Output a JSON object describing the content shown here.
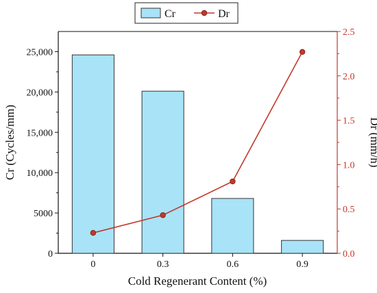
{
  "chart_data": {
    "type": "bar",
    "categories": [
      "0",
      "0.3",
      "0.6",
      "0.9"
    ],
    "series": [
      {
        "name": "Cr",
        "kind": "bar",
        "axis": "left",
        "values": [
          24600,
          20100,
          6800,
          1600
        ],
        "color": "#a8e3f7"
      },
      {
        "name": "Dr",
        "kind": "line",
        "axis": "right",
        "values": [
          0.23,
          0.43,
          0.81,
          2.27
        ],
        "color": "#c0392b"
      }
    ],
    "xlabel": "Cold Regenerant Content (%)",
    "ylabel": "Cr (Cycles/mm)",
    "y2label": "Dr (mm/h)",
    "ylim": [
      0,
      27500
    ],
    "y2lim": [
      0,
      2.5
    ],
    "yticks": [
      "0",
      "5000",
      "10,000",
      "15,000",
      "20,000",
      "25,000"
    ],
    "y2ticks": [
      "0.0",
      "0.5",
      "1.0",
      "1.5",
      "2.0",
      "2.5"
    ],
    "legend": {
      "position": "top-center",
      "entries": [
        "Cr",
        "Dr"
      ]
    },
    "grid": false
  }
}
